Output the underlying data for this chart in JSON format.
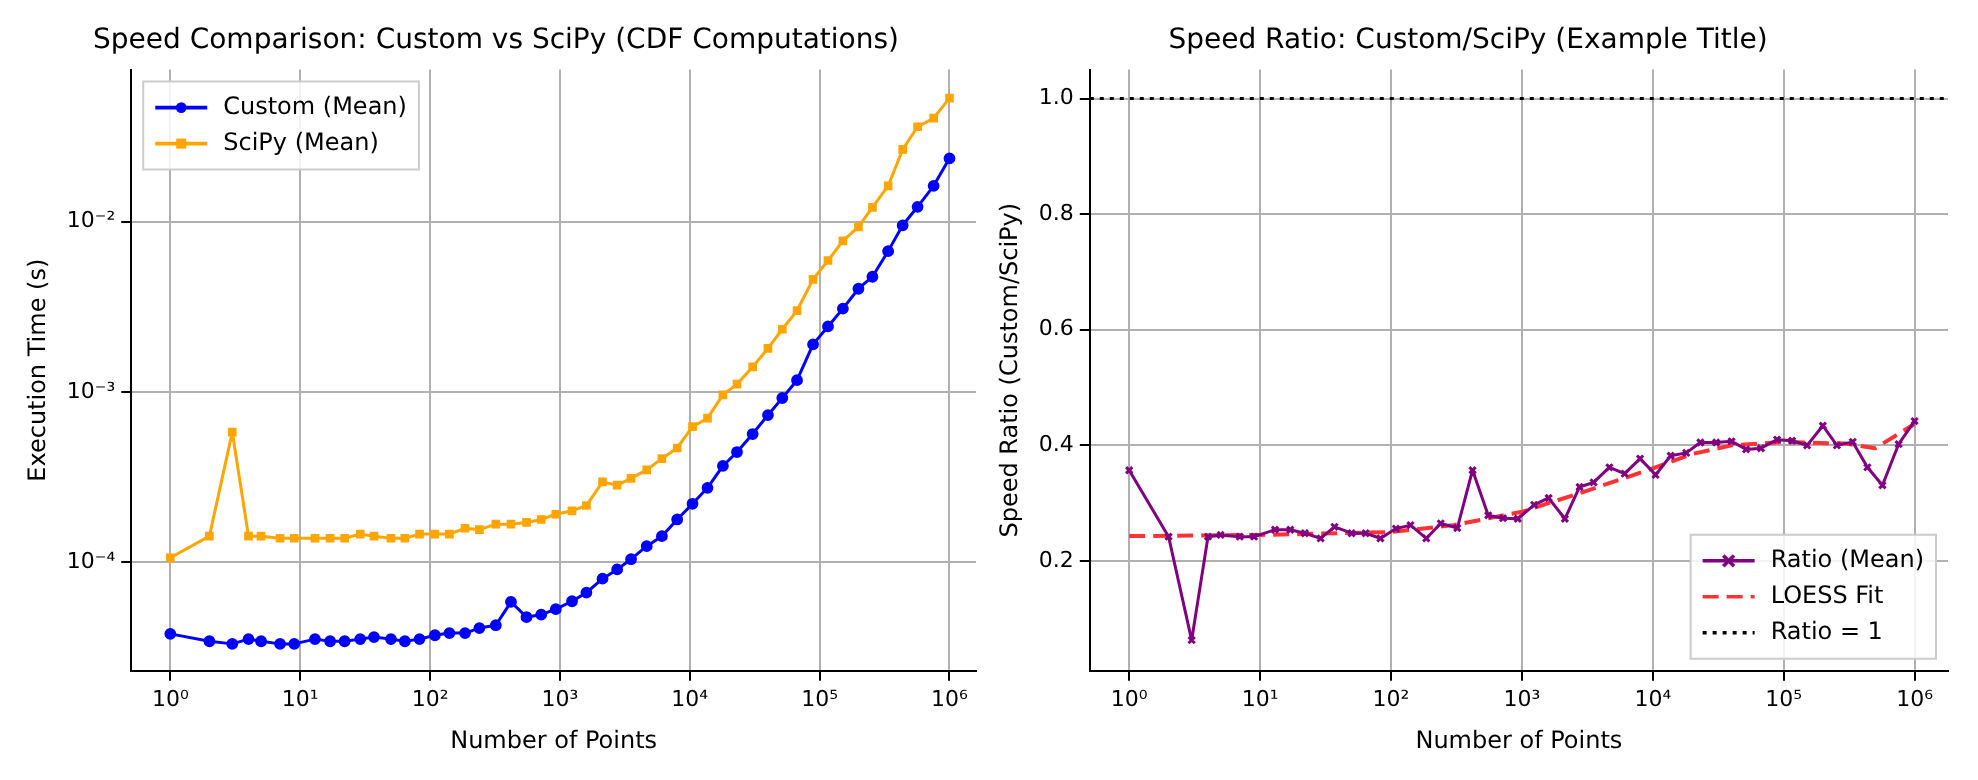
{
  "chart_data": [
    {
      "type": "line",
      "title": "Speed Comparison: Custom vs SciPy (CDF Computations)",
      "xlabel": "Number of Points",
      "ylabel": "Execution Time (s)",
      "log": "xy",
      "grid": true,
      "legend": "top left",
      "x": [
        1,
        2,
        3,
        4,
        5,
        7,
        9,
        13,
        17,
        22,
        29,
        37,
        50,
        64,
        83,
        109,
        141,
        186,
        240,
        321,
        420,
        553,
        718,
        930,
        1240,
        1600,
        2130,
        2760,
        3530,
        4660,
        6100,
        8000,
        10500,
        13700,
        18000,
        23100,
        30500,
        40000,
        51600,
        67000,
        89000,
        116000,
        151000,
        199000,
        255000,
        337000,
        436000,
        568000,
        755000,
        1000000
      ],
      "xlim": [
        0.5,
        1600000
      ],
      "xticks": [
        {
          "value": 1,
          "label": "10⁰"
        },
        {
          "value": 10,
          "label": "10¹"
        },
        {
          "value": 100,
          "label": "10²"
        },
        {
          "value": 1000,
          "label": "10³"
        },
        {
          "value": 10000,
          "label": "10⁴"
        },
        {
          "value": 100000,
          "label": "10⁵"
        },
        {
          "value": 1000000,
          "label": "10⁶"
        }
      ],
      "ylim": [
        2.3e-05,
        0.078
      ],
      "yticks": [
        {
          "value": 0.0001,
          "label": "10⁻⁴"
        },
        {
          "value": 0.001,
          "label": "10⁻³"
        },
        {
          "value": 0.01,
          "label": "10⁻²"
        }
      ],
      "series": [
        {
          "name": "Custom (Mean)",
          "color": "#0000ff",
          "marker": "circle",
          "values": [
            3.79e-05,
            3.43e-05,
            3.31e-05,
            3.53e-05,
            3.43e-05,
            3.31e-05,
            3.31e-05,
            3.53e-05,
            3.43e-05,
            3.43e-05,
            3.53e-05,
            3.63e-05,
            3.53e-05,
            3.43e-05,
            3.53e-05,
            3.72e-05,
            3.83e-05,
            3.83e-05,
            4.1e-05,
            4.26e-05,
            5.84e-05,
            4.75e-05,
            4.92e-05,
            5.29e-05,
            5.89e-05,
            6.62e-05,
            7.99e-05,
            9.06e-05,
            0.000104,
            0.000124,
            0.000142,
            0.000178,
            0.00022,
            0.000273,
            0.000367,
            0.000443,
            0.000565,
            0.00073,
            0.00092,
            0.00117,
            0.0019,
            0.00242,
            0.00308,
            0.00403,
            0.00474,
            0.0067,
            0.0095,
            0.0122,
            0.0162,
            0.0235
          ]
        },
        {
          "name": "SciPy (Mean)",
          "color": "#ffa500",
          "marker": "square",
          "values": [
            0.000106,
            0.000142,
            0.00058,
            0.000142,
            0.000142,
            0.000138,
            0.000138,
            0.000138,
            0.000138,
            0.000138,
            0.000146,
            0.000142,
            0.000138,
            0.000138,
            0.000146,
            0.000146,
            0.000146,
            0.000158,
            0.000155,
            0.000167,
            0.000167,
            0.000171,
            0.000178,
            0.000191,
            0.0002,
            0.000215,
            0.000296,
            0.000283,
            0.00031,
            0.000348,
            0.000405,
            0.000468,
            0.000625,
            0.0007,
            0.00096,
            0.00111,
            0.0014,
            0.0018,
            0.00233,
            0.003,
            0.00457,
            0.0059,
            0.0077,
            0.0093,
            0.0121,
            0.0162,
            0.0265,
            0.036,
            0.0405,
            0.053
          ]
        }
      ]
    },
    {
      "type": "line",
      "title": "Speed Ratio: Custom/SciPy (Example Title)",
      "xlabel": "Number of Points",
      "ylabel": "Speed Ratio (Custom/SciPy)",
      "log": "x",
      "grid": true,
      "legend": "bottom right",
      "x": [
        1,
        2,
        3,
        4,
        5,
        7,
        9,
        13,
        17,
        22,
        29,
        37,
        50,
        64,
        83,
        109,
        141,
        186,
        240,
        321,
        420,
        553,
        718,
        930,
        1240,
        1600,
        2130,
        2760,
        3530,
        4660,
        6100,
        8000,
        10500,
        13700,
        18000,
        23100,
        30500,
        40000,
        51600,
        67000,
        89000,
        116000,
        151000,
        199000,
        255000,
        337000,
        436000,
        568000,
        755000,
        1000000
      ],
      "xlim": [
        0.5,
        1800000
      ],
      "xticks": [
        {
          "value": 1,
          "label": "10⁰"
        },
        {
          "value": 10,
          "label": "10¹"
        },
        {
          "value": 100,
          "label": "10²"
        },
        {
          "value": 1000,
          "label": "10³"
        },
        {
          "value": 10000,
          "label": "10⁴"
        },
        {
          "value": 100000,
          "label": "10⁵"
        },
        {
          "value": 1000000,
          "label": "10⁶"
        }
      ],
      "ylim": [
        0.01,
        1.05
      ],
      "yticks": [
        0.2,
        0.4,
        0.6,
        0.8,
        {
          "value": 1,
          "label": "1.0"
        }
      ],
      "series": [
        {
          "name": "Ratio (Mean)",
          "color": "#800080",
          "marker": "cross",
          "values": [
            0.357,
            0.242,
            0.063,
            0.242,
            0.245,
            0.242,
            0.242,
            0.254,
            0.254,
            0.248,
            0.239,
            0.259,
            0.248,
            0.248,
            0.239,
            0.256,
            0.262,
            0.239,
            0.265,
            0.257,
            0.357,
            0.279,
            0.274,
            0.273,
            0.297,
            0.309,
            0.273,
            0.328,
            0.336,
            0.362,
            0.351,
            0.377,
            0.349,
            0.382,
            0.387,
            0.405,
            0.405,
            0.407,
            0.393,
            0.395,
            0.41,
            0.408,
            0.4,
            0.434,
            0.4,
            0.406,
            0.362,
            0.331,
            0.402,
            0.442
          ]
        },
        {
          "name": "LOESS Fit",
          "color": "#ff3333",
          "marker": "none",
          "line_style": "dashed",
          "x": [
            1,
            10,
            100,
            300,
            1000,
            3000,
            10000,
            20000,
            40000,
            100000,
            300000,
            500000,
            1000000
          ],
          "values": [
            0.243,
            0.245,
            0.25,
            0.262,
            0.285,
            0.32,
            0.36,
            0.385,
            0.4,
            0.406,
            0.403,
            0.395,
            0.437
          ]
        }
      ],
      "ref_lines": [
        {
          "axis": "y",
          "value": 1,
          "label": "Ratio = 1",
          "color": "#000000",
          "line_style": "dotted"
        }
      ]
    }
  ]
}
